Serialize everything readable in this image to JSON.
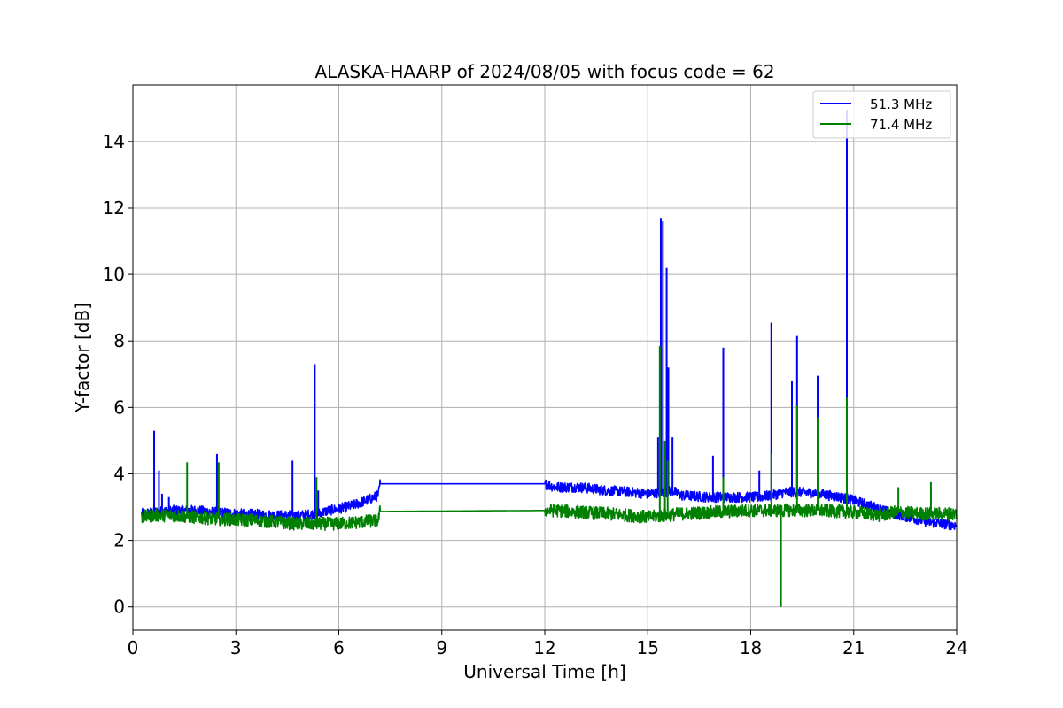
{
  "chart_data": {
    "type": "line",
    "title": "ALASKA-HAARP of 2024/08/05 with focus code = 62",
    "xlabel": "Universal Time [h]",
    "ylabel": "Y-factor [dB]",
    "xlim": [
      0,
      24
    ],
    "ylim": [
      -0.7,
      15.7
    ],
    "xticks": [
      0,
      3,
      6,
      9,
      12,
      15,
      18,
      21,
      24
    ],
    "yticks": [
      0,
      2,
      4,
      6,
      8,
      10,
      12,
      14
    ],
    "grid": true,
    "legend_position": "upper right",
    "series": [
      {
        "name": "51.3 MHz",
        "color": "#0000ff",
        "noise": 0.07,
        "x": [
          0.25,
          0.6,
          1.2,
          1.8,
          2.4,
          3.0,
          3.6,
          4.2,
          4.8,
          5.4,
          5.7,
          6.0,
          6.4,
          6.8,
          7.15,
          7.2,
          12.0,
          12.3,
          13.0,
          13.8,
          14.5,
          15.0,
          15.5,
          15.7,
          16.0,
          16.8,
          17.5,
          18.2,
          18.6,
          19.0,
          19.5,
          20.0,
          20.6,
          21.0,
          21.6,
          22.0,
          22.6,
          23.2,
          24.0
        ],
        "y": [
          2.8,
          2.85,
          2.9,
          2.9,
          2.85,
          2.8,
          2.78,
          2.75,
          2.75,
          2.8,
          2.9,
          2.95,
          3.05,
          3.2,
          3.35,
          3.7,
          3.7,
          3.6,
          3.6,
          3.5,
          3.45,
          3.4,
          3.45,
          3.5,
          3.35,
          3.3,
          3.3,
          3.3,
          3.35,
          3.45,
          3.45,
          3.4,
          3.3,
          3.2,
          3.0,
          2.85,
          2.7,
          2.55,
          2.45
        ],
        "spikes": [
          [
            0.62,
            5.3
          ],
          [
            0.76,
            4.1
          ],
          [
            0.85,
            3.4
          ],
          [
            1.05,
            3.3
          ],
          [
            2.45,
            4.6
          ],
          [
            4.65,
            4.4
          ],
          [
            5.3,
            7.3
          ],
          [
            5.4,
            3.5
          ],
          [
            15.3,
            5.1
          ],
          [
            15.38,
            11.7
          ],
          [
            15.44,
            11.6
          ],
          [
            15.55,
            10.2
          ],
          [
            15.6,
            7.2
          ],
          [
            15.72,
            5.1
          ],
          [
            16.9,
            4.55
          ],
          [
            17.2,
            7.8
          ],
          [
            18.25,
            4.1
          ],
          [
            18.6,
            8.55
          ],
          [
            19.2,
            6.8
          ],
          [
            19.35,
            8.15
          ],
          [
            19.95,
            6.95
          ],
          [
            20.8,
            14.95
          ]
        ]
      },
      {
        "name": "71.4 MHz",
        "color": "#008000",
        "noise": 0.09,
        "x": [
          0.25,
          0.6,
          1.2,
          1.8,
          2.4,
          3.0,
          3.6,
          4.2,
          4.8,
          5.4,
          6.0,
          6.6,
          7.15,
          7.2,
          12.0,
          12.3,
          13.0,
          13.8,
          14.5,
          15.0,
          15.5,
          16.0,
          17.0,
          18.0,
          19.0,
          20.0,
          21.0,
          21.8,
          22.2,
          23.0,
          24.0
        ],
        "y": [
          2.7,
          2.75,
          2.75,
          2.7,
          2.65,
          2.62,
          2.6,
          2.55,
          2.5,
          2.5,
          2.5,
          2.55,
          2.6,
          2.87,
          2.9,
          2.9,
          2.85,
          2.8,
          2.75,
          2.7,
          2.75,
          2.8,
          2.85,
          2.9,
          2.9,
          2.9,
          2.85,
          2.75,
          2.85,
          2.8,
          2.8
        ],
        "spikes": [
          [
            1.58,
            4.35
          ],
          [
            2.5,
            4.35
          ],
          [
            5.35,
            3.9
          ],
          [
            15.35,
            7.85
          ],
          [
            15.5,
            5.0
          ],
          [
            15.58,
            4.4
          ],
          [
            17.2,
            3.9
          ],
          [
            18.6,
            4.6
          ],
          [
            18.88,
            0.0
          ],
          [
            19.35,
            6.05
          ],
          [
            19.95,
            5.7
          ],
          [
            20.8,
            6.3
          ],
          [
            22.3,
            3.6
          ],
          [
            23.25,
            3.75
          ]
        ]
      }
    ]
  }
}
